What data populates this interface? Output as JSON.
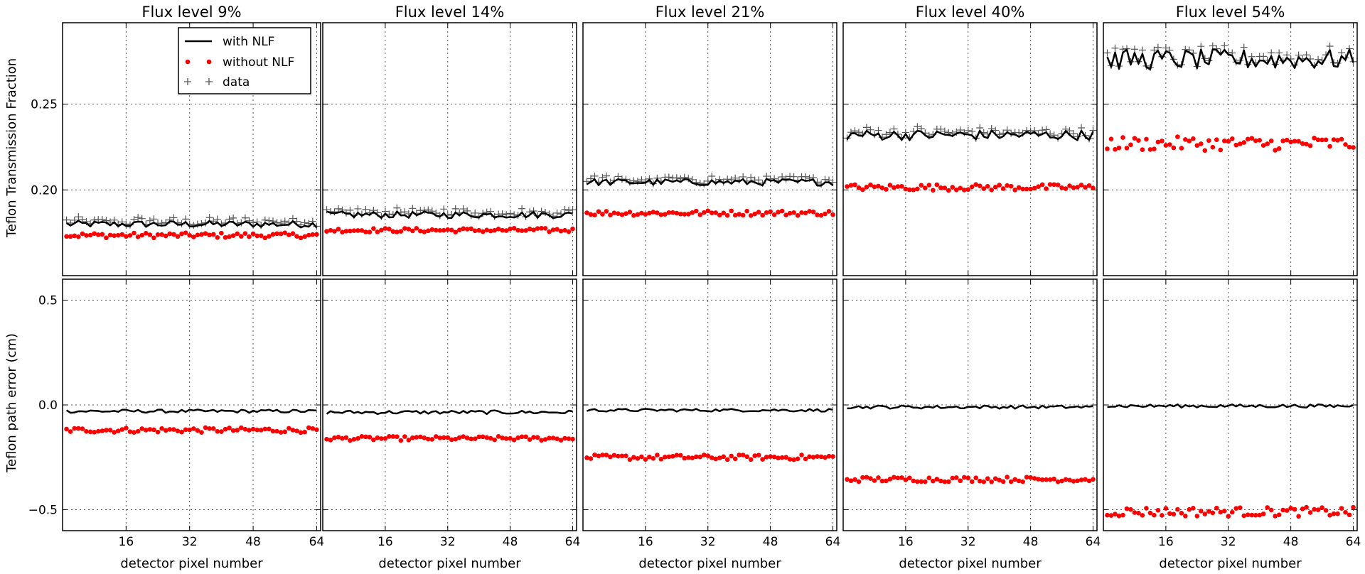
{
  "chart_data": {
    "type": "line",
    "layout": "2 rows x 5 columns of panels sharing x axis",
    "xlabel": "detector pixel number",
    "xticks": [
      16,
      32,
      48,
      64
    ],
    "xlim": [
      0,
      65
    ],
    "grid": true,
    "legend": {
      "placement": "top-right of first panel",
      "entries": [
        {
          "label": "with NLF",
          "style": "black line"
        },
        {
          "label": "without NLF",
          "style": "red dots"
        },
        {
          "label": "data",
          "style": "gray plus markers"
        }
      ]
    },
    "colors": {
      "with_nlf": "#000000",
      "without_nlf": "#ff0000",
      "data": "#555555",
      "grid": "#555555"
    },
    "rows": [
      {
        "ylabel": "Teflon Transmission Fraction",
        "ylim": [
          0.15,
          0.2975
        ],
        "yticks": [
          {
            "v": 0.2,
            "label": "0.20"
          },
          {
            "v": 0.25,
            "label": "0.25"
          }
        ]
      },
      {
        "ylabel": "Teflon path error (cm)",
        "ylim": [
          -0.6,
          0.6
        ],
        "yticks": [
          {
            "v": -0.5,
            "label": "−0.5"
          },
          {
            "v": 0.0,
            "label": "0.0"
          },
          {
            "v": 0.5,
            "label": "0.5"
          }
        ]
      }
    ],
    "panels": [
      {
        "title": "Flux level 9%",
        "transmission": {
          "with_nlf_mean": 0.18,
          "with_nlf_jitter": 0.002,
          "data_offset": 0.0015,
          "without_nlf_mean": 0.1735,
          "without_nlf_jitter": 0.0015
        },
        "path_error": {
          "with_nlf_mean": -0.03,
          "with_nlf_jitter": 0.008,
          "without_nlf_mean": -0.12,
          "without_nlf_jitter": 0.012
        }
      },
      {
        "title": "Flux level 14%",
        "transmission": {
          "with_nlf_mean": 0.1855,
          "with_nlf_jitter": 0.002,
          "data_offset": 0.0015,
          "without_nlf_mean": 0.1765,
          "without_nlf_jitter": 0.0012
        },
        "path_error": {
          "with_nlf_mean": -0.035,
          "with_nlf_jitter": 0.009,
          "without_nlf_mean": -0.16,
          "without_nlf_jitter": 0.01
        }
      },
      {
        "title": "Flux level 21%",
        "transmission": {
          "with_nlf_mean": 0.2045,
          "with_nlf_jitter": 0.002,
          "data_offset": 0.0015,
          "without_nlf_mean": 0.1865,
          "without_nlf_jitter": 0.0015
        },
        "path_error": {
          "with_nlf_mean": -0.025,
          "with_nlf_jitter": 0.007,
          "without_nlf_mean": -0.25,
          "without_nlf_jitter": 0.012
        }
      },
      {
        "title": "Flux level 40%",
        "transmission": {
          "with_nlf_mean": 0.232,
          "with_nlf_jitter": 0.003,
          "data_offset": 0.0015,
          "without_nlf_mean": 0.2015,
          "without_nlf_jitter": 0.0018
        },
        "path_error": {
          "with_nlf_mean": -0.01,
          "with_nlf_jitter": 0.008,
          "without_nlf_mean": -0.355,
          "without_nlf_jitter": 0.012
        }
      },
      {
        "title": "Flux level 54%",
        "transmission": {
          "with_nlf_mean": 0.276,
          "with_nlf_jitter": 0.006,
          "data_offset": 0.0015,
          "without_nlf_mean": 0.227,
          "without_nlf_jitter": 0.004
        },
        "path_error": {
          "with_nlf_mean": -0.005,
          "with_nlf_jitter": 0.008,
          "without_nlf_mean": -0.51,
          "without_nlf_jitter": 0.022
        }
      }
    ]
  }
}
